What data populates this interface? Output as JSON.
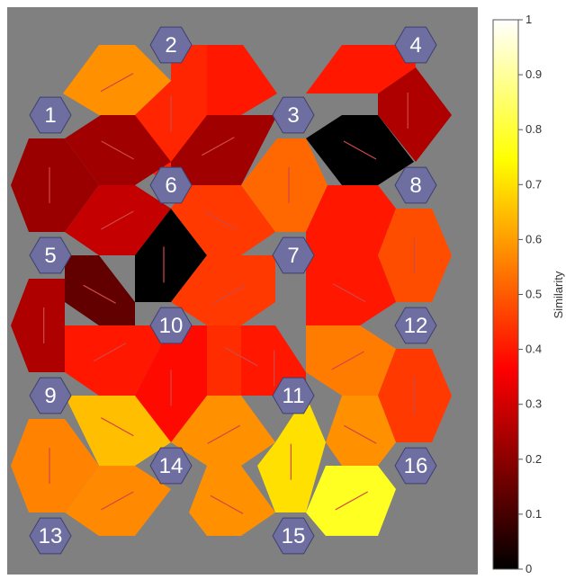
{
  "colorbar": {
    "label": "Similarity",
    "ticks": [
      0,
      0.1,
      0.2,
      0.3,
      0.4,
      0.5,
      0.6,
      0.7,
      0.8,
      0.9,
      1
    ],
    "tick_labels": [
      "0",
      "0.1",
      "0.2",
      "0.3",
      "0.4",
      "0.5",
      "0.6",
      "0.7",
      "0.8",
      "0.9",
      "1"
    ],
    "colormap": "hot"
  },
  "nodes": [
    "1",
    "2",
    "3",
    "4",
    "5",
    "6",
    "7",
    "8",
    "9",
    "10",
    "11",
    "12",
    "13",
    "14",
    "15",
    "16"
  ],
  "colors": {
    "background": "#808080",
    "node_fill": "#6e6fa0",
    "node_stroke": "#3d3f6e",
    "orientation_line": "#d04848"
  },
  "cells": [
    {
      "id": "c1",
      "value": 0.58,
      "orientation": "diag-up"
    },
    {
      "id": "c2",
      "value": 0.42,
      "orientation": "vertical"
    },
    {
      "id": "c3",
      "value": 0.4,
      "orientation": "none"
    },
    {
      "id": "c4",
      "value": 0.4,
      "orientation": "none"
    },
    {
      "id": "c5",
      "value": 0.22,
      "orientation": "vertical"
    },
    {
      "id": "c6",
      "value": 0.23,
      "orientation": "diag-down"
    },
    {
      "id": "c7",
      "value": 0.23,
      "orientation": "diag-up"
    },
    {
      "id": "c8",
      "value": 0.0,
      "orientation": "diag-down"
    },
    {
      "id": "c9",
      "value": 0.25,
      "orientation": "vertical"
    },
    {
      "id": "c10",
      "value": 0.28,
      "orientation": "diag-up"
    },
    {
      "id": "c11",
      "value": 0.0,
      "orientation": "vertical"
    },
    {
      "id": "c12",
      "value": 0.45,
      "orientation": "diag-down"
    },
    {
      "id": "c13",
      "value": 0.52,
      "orientation": "vertical"
    },
    {
      "id": "c14",
      "value": 0.4,
      "orientation": "none"
    },
    {
      "id": "c15",
      "value": 0.48,
      "orientation": "vertical"
    },
    {
      "id": "c16",
      "value": 0.14,
      "orientation": "diag-down"
    },
    {
      "id": "c17",
      "value": 0.45,
      "orientation": "diag-up"
    },
    {
      "id": "c18",
      "value": 0.4,
      "orientation": "diag-down"
    },
    {
      "id": "c19",
      "value": 0.25,
      "orientation": "vertical"
    },
    {
      "id": "c20",
      "value": 0.4,
      "orientation": "diag-up"
    },
    {
      "id": "c21",
      "value": 0.43,
      "orientation": "diag-down"
    },
    {
      "id": "c22",
      "value": 0.38,
      "orientation": "vertical"
    },
    {
      "id": "c23",
      "value": 0.55,
      "orientation": "diag-up"
    },
    {
      "id": "c24",
      "value": 0.45,
      "orientation": "vertical"
    },
    {
      "id": "c25",
      "value": 0.4,
      "orientation": "vertical"
    },
    {
      "id": "c26",
      "value": 0.65,
      "orientation": "diag-down"
    },
    {
      "id": "c27",
      "value": 0.58,
      "orientation": "diag-up"
    },
    {
      "id": "c28",
      "value": 0.7,
      "orientation": "vertical"
    },
    {
      "id": "c29",
      "value": 0.58,
      "orientation": "diag-down"
    },
    {
      "id": "c30",
      "value": 0.56,
      "orientation": "vertical"
    },
    {
      "id": "c31",
      "value": 0.57,
      "orientation": "diag-up"
    },
    {
      "id": "c32",
      "value": 0.58,
      "orientation": "diag-down"
    },
    {
      "id": "c33",
      "value": 0.78,
      "orientation": "diag-up"
    }
  ]
}
